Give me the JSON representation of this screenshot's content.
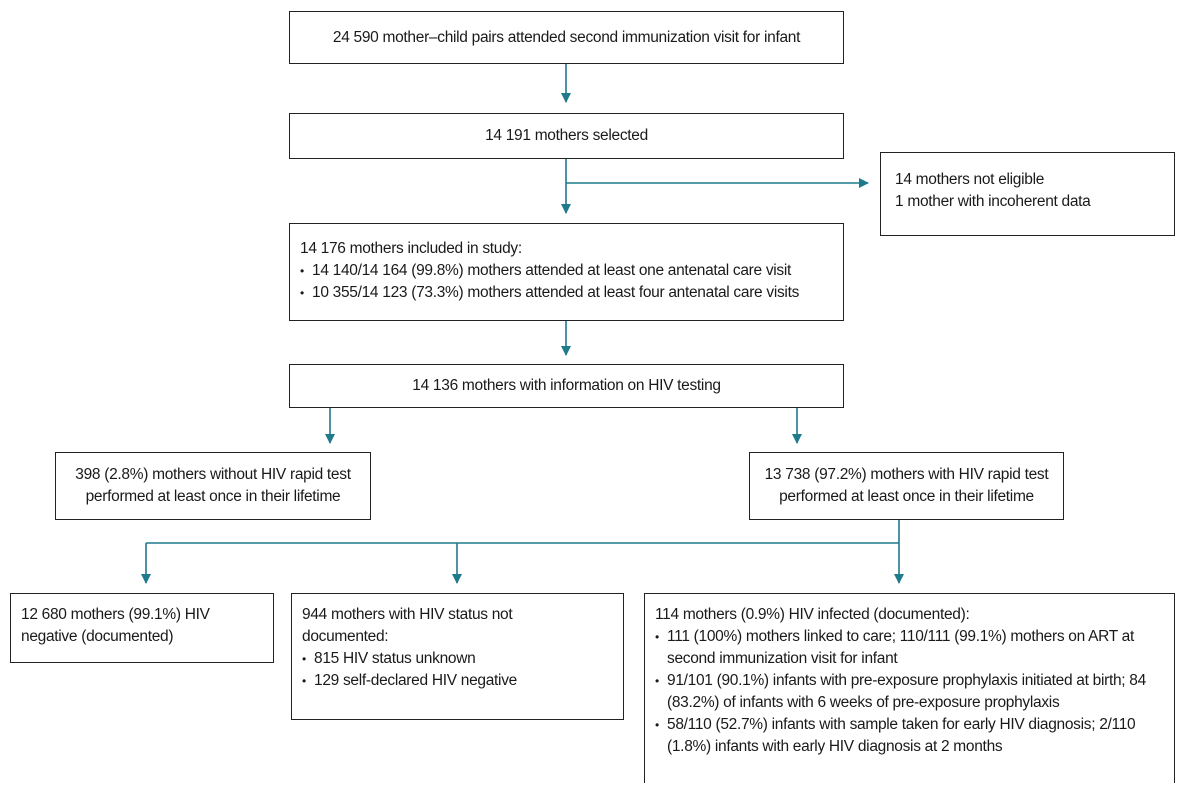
{
  "nodes": {
    "attended": {
      "text": "24 590 mother–child pairs attended second immunization visit for infant"
    },
    "selected": {
      "text": "14 191 mothers selected"
    },
    "excluded": {
      "lines": [
        "14 mothers not eligible",
        "1 mother with incoherent data"
      ]
    },
    "included": {
      "title": "14 176 mothers included in study:",
      "bullets": [
        "14 140/14 164 (99.8%) mothers attended at least one antenatal care visit",
        "10 355/14 123 (73.3%) mothers attended at least four antenatal care visits"
      ]
    },
    "hiv_info": {
      "text": "14 136 mothers with information on HIV testing"
    },
    "no_test": {
      "lines": [
        "398 (2.8%) mothers without HIV rapid test",
        "performed at least once in their lifetime"
      ]
    },
    "tested": {
      "lines": [
        "13 738 (97.2%) mothers with HIV rapid test",
        "performed at least once in their lifetime"
      ]
    },
    "negative": {
      "lines": [
        "12 680 mothers (99.1%) HIV",
        "negative (documented)"
      ]
    },
    "not_documented": {
      "title_lines": [
        "944 mothers with HIV status not",
        "documented:"
      ],
      "bullets": [
        "815 HIV status unknown",
        "129 self-declared HIV negative"
      ]
    },
    "infected": {
      "title": "114 mothers (0.9%) HIV infected (documented):",
      "bullets": [
        [
          "111 (100%) mothers linked to care; 110/111 (99.1%) mothers on ART at",
          "second immunization visit for infant"
        ],
        [
          "91/101 (90.1%) infants with pre-exposure prophylaxis initiated at birth; 84",
          "(83.2%) of infants with 6 weeks of pre-exposure prophylaxis"
        ],
        [
          "58/110 (52.7%) infants with sample taken for early HIV diagnosis; 2/110",
          "(1.8%) infants with early HIV diagnosis at 2 months"
        ]
      ]
    }
  },
  "colors": {
    "arrow": "#1f7a8c",
    "border": "#222222"
  }
}
